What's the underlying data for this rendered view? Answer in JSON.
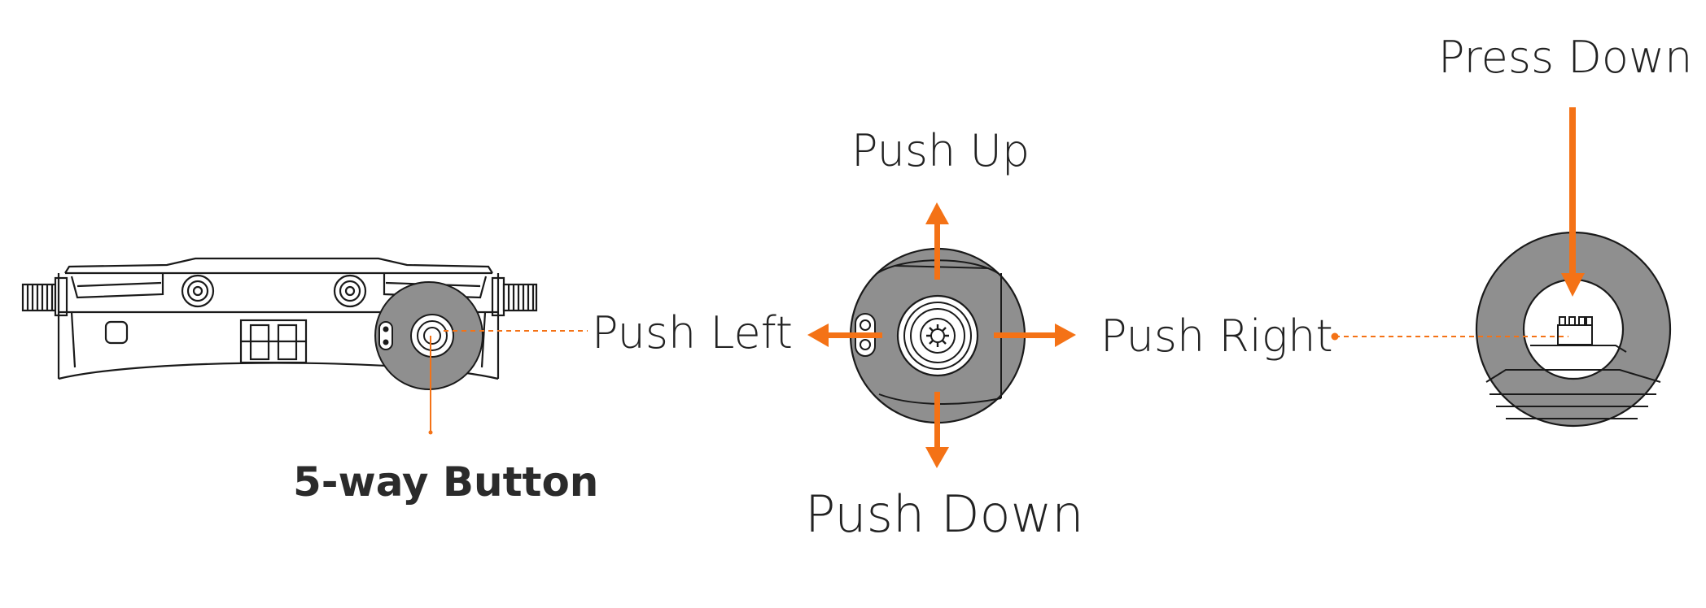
{
  "labels": {
    "press_down": "Press Down",
    "push_up": "Push Up",
    "push_left": "Push Left",
    "push_right": "Push Right",
    "push_down": "Push Down",
    "button_name": "5-way Button"
  },
  "colors": {
    "accent": "#f47216",
    "line": "#1a1a1a",
    "zoom_fill": "#8f8f8f",
    "text": "#222222"
  }
}
